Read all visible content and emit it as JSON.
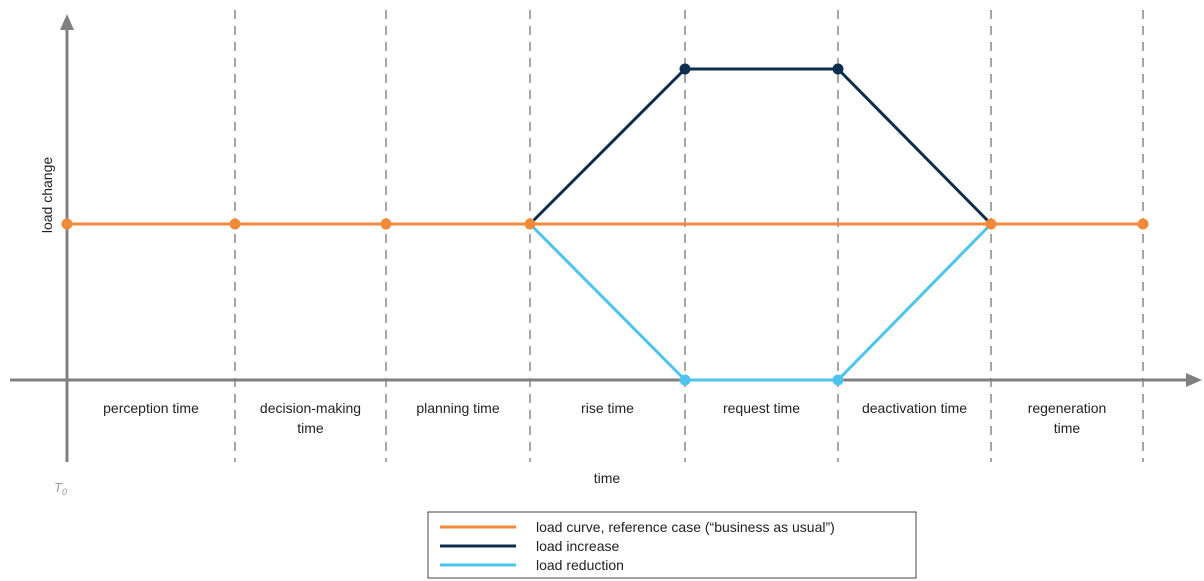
{
  "chart_data": {
    "type": "line",
    "ylabel": "load change",
    "xlabel": "time",
    "origin_label": "T",
    "origin_subscript": "0",
    "phases": [
      {
        "lines": [
          "perception time"
        ]
      },
      {
        "lines": [
          "decision-making",
          "time"
        ]
      },
      {
        "lines": [
          "planning time"
        ]
      },
      {
        "lines": [
          "rise time"
        ]
      },
      {
        "lines": [
          "request time"
        ]
      },
      {
        "lines": [
          "deactivation time"
        ]
      },
      {
        "lines": [
          "regeneration",
          "time"
        ]
      }
    ],
    "series": [
      {
        "name": "load curve, reference case (“business as usual”)",
        "color": "#f28a3a",
        "x": [
          0,
          1,
          2,
          3,
          4,
          5,
          6,
          7
        ],
        "y": [
          0,
          0,
          0,
          0,
          0,
          0,
          0,
          0
        ]
      },
      {
        "name": "load increase",
        "color": "#0d2d4f",
        "x": [
          3,
          4,
          5,
          6
        ],
        "y": [
          0,
          1,
          1,
          0
        ]
      },
      {
        "name": "load reduction",
        "color": "#4cc4ee",
        "x": [
          3,
          4,
          5,
          6
        ],
        "y": [
          0,
          -1,
          -1,
          0
        ]
      }
    ]
  }
}
